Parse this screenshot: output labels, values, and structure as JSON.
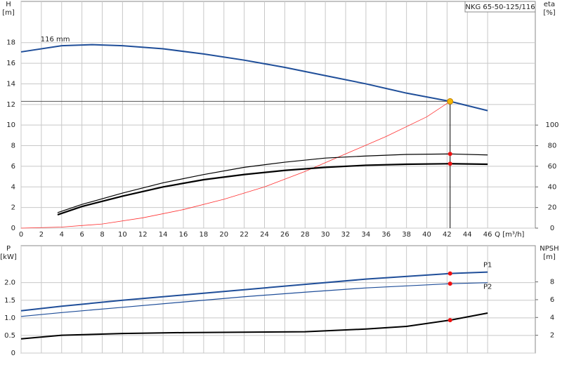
{
  "chart_data": [
    {
      "type": "line",
      "title": "NKG 65-50-125/116",
      "x_label": "Q [m³/h]",
      "y_label": [
        "H",
        "[m]"
      ],
      "y2_label": [
        "eta",
        "[%]"
      ],
      "xlim": [
        0,
        50.7
      ],
      "xticks": [
        0,
        2,
        4,
        6,
        8,
        10,
        12,
        14,
        16,
        18,
        20,
        22,
        24,
        26,
        28,
        30,
        32,
        34,
        36,
        38,
        40,
        42,
        44,
        46
      ],
      "ylim": [
        0,
        22
      ],
      "yticks": [
        0,
        2,
        4,
        6,
        8,
        10,
        12,
        14,
        16,
        18
      ],
      "y2lim": [
        0,
        220
      ],
      "y2ticks": [
        0,
        20,
        40,
        60,
        80,
        100
      ],
      "grid": true,
      "operating_point": {
        "x": 42.3,
        "y": 12.3,
        "color": "#f5b800"
      },
      "series": [
        {
          "name": "116 mm",
          "color": "#1f4e99",
          "width": 2,
          "x": [
            0,
            4,
            7,
            10,
            14,
            18,
            22,
            26,
            30,
            34,
            38,
            42.3,
            46
          ],
          "values": [
            17.1,
            17.7,
            17.8,
            17.7,
            17.4,
            16.9,
            16.3,
            15.6,
            14.8,
            14.0,
            13.1,
            12.3,
            11.4
          ]
        },
        {
          "color": "#ff3030",
          "width": 0.8,
          "x": [
            0,
            4,
            8,
            12,
            16,
            20,
            24,
            28,
            32,
            36,
            40,
            42.3
          ],
          "values": [
            0,
            0.1,
            0.4,
            1.0,
            1.8,
            2.8,
            4.0,
            5.5,
            7.2,
            8.9,
            10.8,
            12.3
          ]
        },
        {
          "color": "#000000",
          "width": 1.2,
          "axis": "y2",
          "marker": true,
          "x": [
            3.6,
            6,
            10,
            14,
            18,
            22,
            26,
            30,
            34,
            38,
            42.3,
            46
          ],
          "values": [
            15,
            23,
            34,
            44,
            52,
            59,
            64,
            68,
            70,
            71.5,
            72,
            71
          ]
        },
        {
          "color": "#000000",
          "width": 2.2,
          "axis": "y2",
          "marker": true,
          "x": [
            3.6,
            6,
            10,
            14,
            18,
            22,
            26,
            30,
            34,
            38,
            42.3,
            46
          ],
          "values": [
            13,
            21,
            31,
            40,
            47,
            52,
            56,
            59,
            61,
            62,
            62.5,
            62
          ]
        }
      ]
    },
    {
      "type": "line",
      "y_label": [
        "P",
        "[kW]"
      ],
      "y2_label": [
        "NPSH",
        "[m]"
      ],
      "xlim": [
        0,
        50.7
      ],
      "xticks": [
        0,
        2,
        4,
        6,
        8,
        10,
        12,
        14,
        16,
        18,
        20,
        22,
        24,
        26,
        28,
        30,
        32,
        34,
        36,
        38,
        40,
        42,
        44,
        46
      ],
      "ylim": [
        0,
        3.05
      ],
      "yticks": [
        0,
        0.5,
        {
          "value": 1.0,
          "label": "1.0"
        },
        1.5,
        {
          "value": 2.0,
          "label": "2.0"
        }
      ],
      "y2lim": [
        0,
        12.07
      ],
      "y2ticks": [
        2,
        4,
        6,
        8
      ],
      "grid": true,
      "operating_point": {
        "x": 42.3
      },
      "series": [
        {
          "name": "P1",
          "color": "#1f4e99",
          "width": 2,
          "marker": true,
          "x": [
            0,
            4,
            10,
            16,
            22,
            28,
            34,
            42.3,
            46
          ],
          "values": [
            1.2,
            1.33,
            1.5,
            1.65,
            1.8,
            1.95,
            2.1,
            2.26,
            2.3
          ]
        },
        {
          "name": "P2",
          "color": "#1f4e99",
          "width": 1.2,
          "marker": true,
          "x": [
            0,
            4,
            10,
            16,
            22,
            28,
            34,
            42.3,
            46
          ],
          "values": [
            1.04,
            1.15,
            1.3,
            1.45,
            1.6,
            1.73,
            1.85,
            1.97,
            2.0
          ]
        },
        {
          "color": "#000000",
          "width": 2,
          "axis": "y2",
          "marker": true,
          "x": [
            0,
            4,
            10,
            16,
            22,
            28,
            34,
            38,
            42.3,
            46
          ],
          "values": [
            1.6,
            2.0,
            2.2,
            2.3,
            2.35,
            2.4,
            2.7,
            3.0,
            3.7,
            4.5
          ]
        }
      ]
    }
  ]
}
